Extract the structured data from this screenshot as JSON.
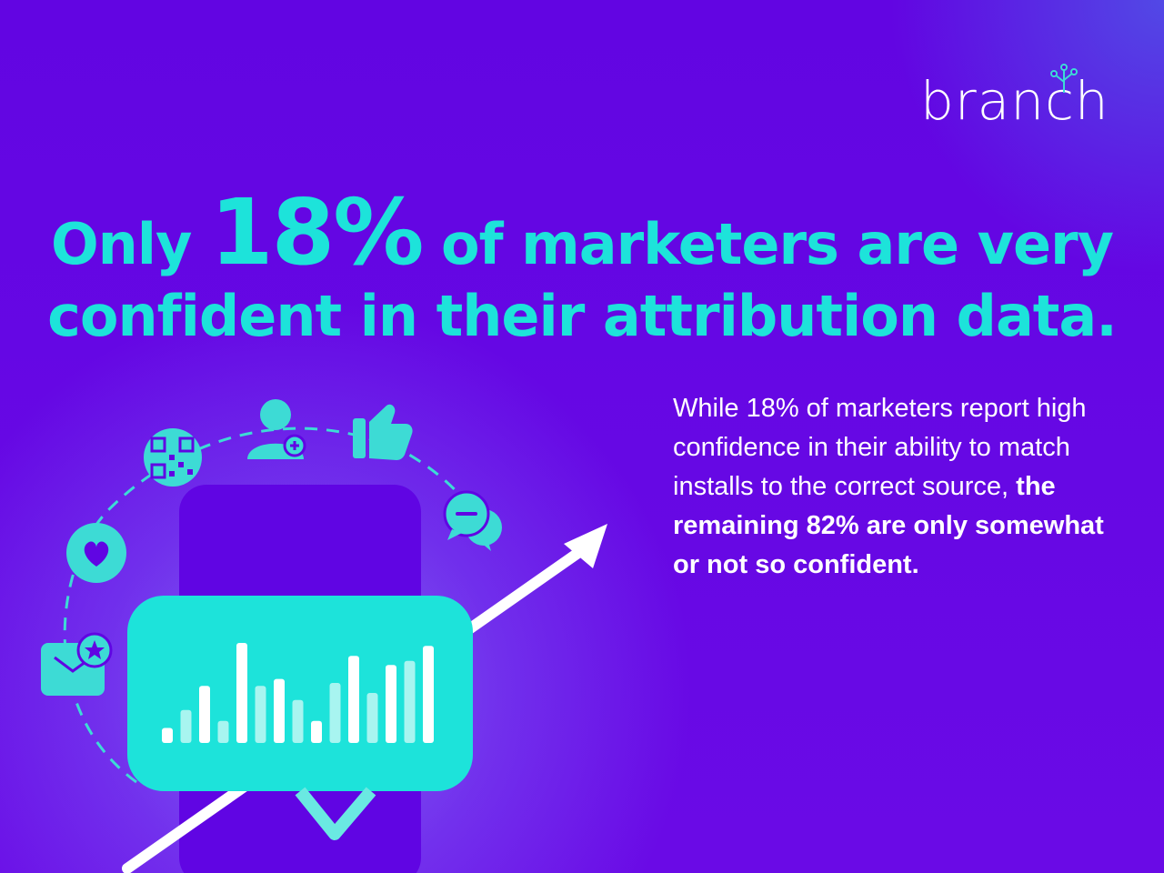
{
  "brand": {
    "logo_text": "branch"
  },
  "headline": {
    "pre": "Only ",
    "percent": "18%",
    "post": " of marketers are very",
    "line2": "confident in their attribution data."
  },
  "body": {
    "regular": "While 18% of marketers report high confidence in their ability to match installs to the correct source, ",
    "bold": "the remaining 82% are only somewhat or not so confident."
  },
  "illustration": {
    "icons": [
      "heart-icon",
      "qr-code-icon",
      "add-user-icon",
      "thumbs-up-icon",
      "chat-bubble-icon",
      "mail-star-icon"
    ],
    "bar_levels": [
      0.15,
      0.33,
      0.57,
      0.22,
      1.0,
      0.57,
      0.64,
      0.43,
      0.22,
      0.6,
      0.87,
      0.5,
      0.78,
      0.82,
      0.97
    ],
    "colors": {
      "accent": "#1de3da",
      "phone": "#6005e3",
      "arrow": "#ffffff",
      "icon_fill": "#3ddbd5"
    }
  }
}
